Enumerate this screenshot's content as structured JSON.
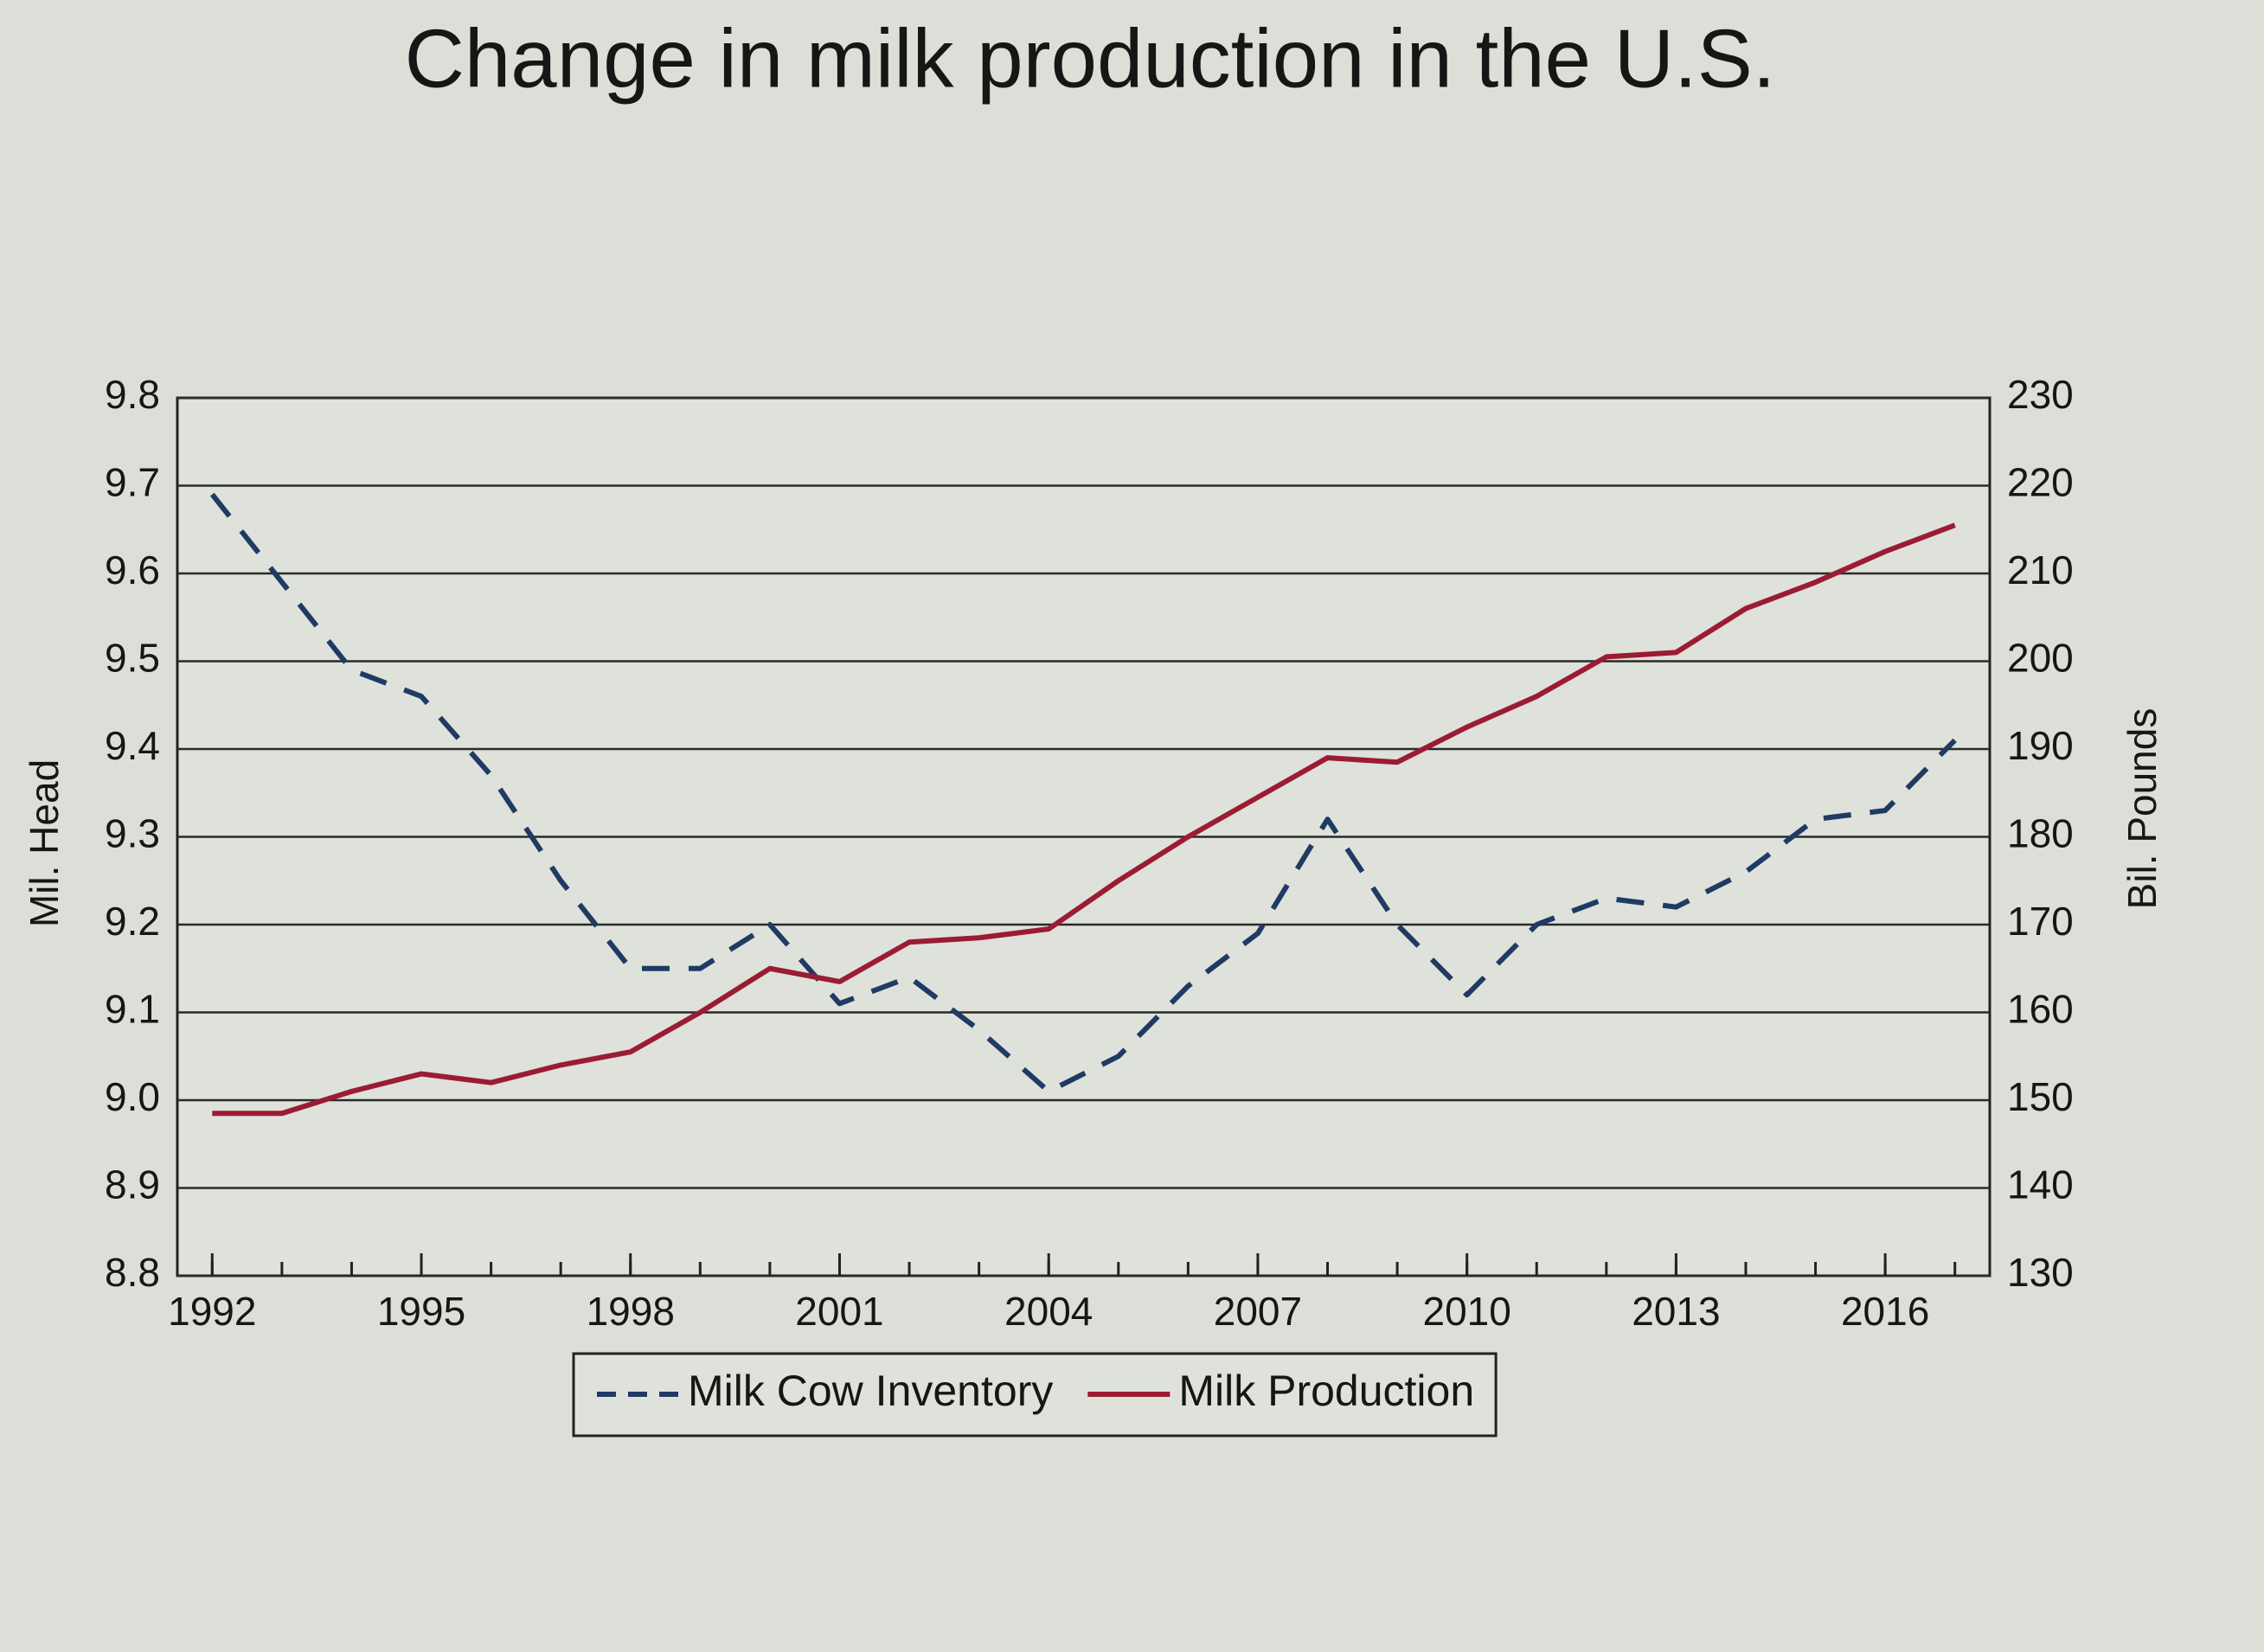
{
  "chart_data": {
    "type": "line",
    "title": "Change in milk production in the U.S.",
    "x": [
      1992,
      1993,
      1994,
      1995,
      1996,
      1997,
      1998,
      1999,
      2000,
      2001,
      2002,
      2003,
      2004,
      2005,
      2006,
      2007,
      2008,
      2009,
      2010,
      2011,
      2012,
      2013,
      2014,
      2015,
      2016,
      2017
    ],
    "xlim": [
      1991.5,
      2017.5
    ],
    "xticks": [
      1992,
      1995,
      1998,
      2001,
      2004,
      2007,
      2010,
      2013,
      2016
    ],
    "ylabel": "Mil. Head",
    "ylim": [
      8.8,
      9.8
    ],
    "yticks": [
      8.8,
      8.9,
      {
        "value": 9,
        "label": "9.0"
      },
      9.1,
      9.2,
      9.3,
      9.4,
      9.5,
      9.6,
      9.7,
      9.8
    ],
    "y2label": "Bil. Pounds",
    "y2lim": [
      130,
      230
    ],
    "y2ticks": [
      130,
      140,
      150,
      160,
      170,
      180,
      190,
      200,
      210,
      220,
      230
    ],
    "grid": true,
    "legend": "bottom",
    "series": [
      {
        "name": "Milk Cow Inventory",
        "color": "#1f3b63",
        "dashed": true,
        "values": [
          9.69,
          9.59,
          9.49,
          9.46,
          9.37,
          9.25,
          9.15,
          9.15,
          9.2,
          9.11,
          9.14,
          9.08,
          9.01,
          9.05,
          9.13,
          9.19,
          9.32,
          9.2,
          9.12,
          9.2,
          9.23,
          9.22,
          9.26,
          9.32,
          9.33,
          9.41
        ]
      },
      {
        "name": "Milk Production",
        "color": "#9b1c32",
        "axis": "y2",
        "values": [
          148.5,
          148.5,
          151,
          153,
          152,
          154,
          155.5,
          160,
          165,
          163.5,
          168,
          168.5,
          169.5,
          175,
          180,
          184.5,
          189,
          188.5,
          192.5,
          196,
          200.5,
          201,
          206,
          209,
          212.5,
          215.5
        ]
      }
    ]
  }
}
